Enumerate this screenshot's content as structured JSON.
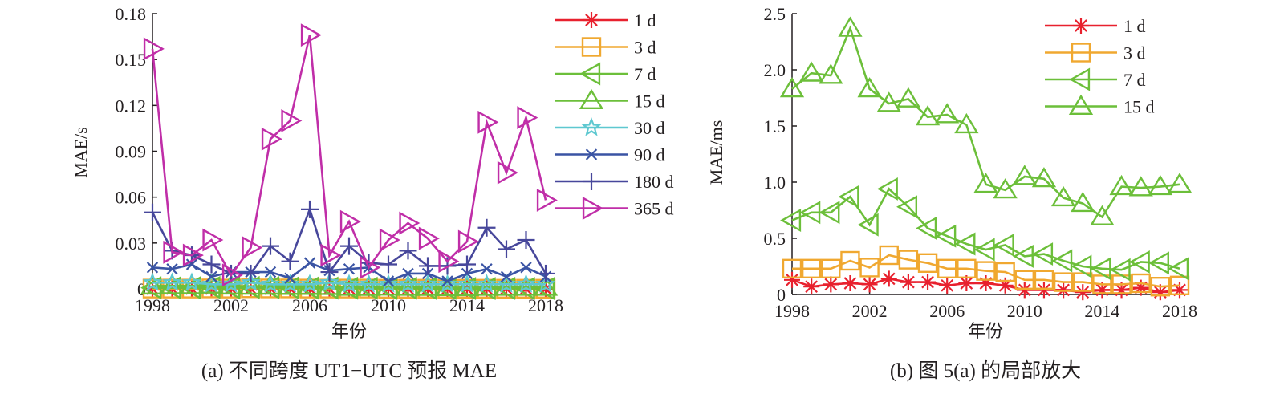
{
  "chart_data": [
    {
      "type": "line",
      "caption": "(a) 不同跨度 UT1−UTC 预报 MAE",
      "xlabel": "年份",
      "ylabel": "MAE/s",
      "xlim": [
        1998,
        2018
      ],
      "ylim": [
        0,
        0.18
      ],
      "xticks": [
        "1998",
        "2002",
        "2006",
        "2010",
        "2014",
        "2018"
      ],
      "yticks": [
        "0",
        "0.03",
        "0.06",
        "0.09",
        "0.12",
        "0.15",
        "0.18"
      ],
      "grid": false,
      "legend_position": "right",
      "x": [
        1998,
        1999,
        2000,
        2001,
        2002,
        2003,
        2004,
        2005,
        2006,
        2007,
        2008,
        2009,
        2010,
        2011,
        2012,
        2013,
        2014,
        2015,
        2016,
        2017,
        2018
      ],
      "series": [
        {
          "name": "1 d",
          "color": "#e8212e",
          "marker": "asterisk",
          "values": [
            0.0001,
            0.0001,
            0.0001,
            0.0001,
            0.0001,
            0.0001,
            0.0001,
            0.0001,
            0.0001,
            0.0001,
            0.0001,
            0.0001,
            0.0,
            0.0,
            0.0,
            0.0,
            0.0,
            0.0,
            0.0001,
            0.0,
            0.0
          ]
        },
        {
          "name": "3 d",
          "color": "#f0a830",
          "marker": "square",
          "values": [
            0.0002,
            0.0002,
            0.0002,
            0.0003,
            0.0002,
            0.0004,
            0.0003,
            0.0003,
            0.0002,
            0.0002,
            0.0002,
            0.0002,
            0.0001,
            0.0001,
            0.0001,
            0.0001,
            0.0001,
            0.0001,
            0.0001,
            0.0001,
            0.0001
          ]
        },
        {
          "name": "7 d",
          "color": "#6cbf3a",
          "marker": "triangle-left",
          "values": [
            0.0007,
            0.0007,
            0.0007,
            0.0009,
            0.0006,
            0.0009,
            0.0008,
            0.0006,
            0.0005,
            0.0005,
            0.0004,
            0.0004,
            0.0003,
            0.0004,
            0.0003,
            0.0003,
            0.0002,
            0.0002,
            0.0003,
            0.0003,
            0.0002
          ]
        },
        {
          "name": "15 d",
          "color": "#6cbf3a",
          "marker": "triangle-up",
          "values": [
            0.0018,
            0.002,
            0.002,
            0.0024,
            0.0018,
            0.0017,
            0.0017,
            0.0016,
            0.0016,
            0.0015,
            0.001,
            0.0009,
            0.0011,
            0.001,
            0.0009,
            0.0008,
            0.0007,
            0.001,
            0.001,
            0.001,
            0.001
          ]
        },
        {
          "name": "30 d",
          "color": "#5ec8d0",
          "marker": "star",
          "values": [
            0.004,
            0.004,
            0.004,
            0.003,
            0.003,
            0.004,
            0.003,
            0.003,
            0.003,
            0.004,
            0.003,
            0.003,
            0.003,
            0.003,
            0.003,
            0.003,
            0.003,
            0.003,
            0.003,
            0.003,
            0.003
          ]
        },
        {
          "name": "90 d",
          "color": "#3a54a4",
          "marker": "x",
          "values": [
            0.014,
            0.013,
            0.016,
            0.008,
            0.011,
            0.011,
            0.011,
            0.007,
            0.017,
            0.012,
            0.013,
            0.014,
            0.005,
            0.01,
            0.01,
            0.005,
            0.01,
            0.013,
            0.008,
            0.014,
            0.008
          ]
        },
        {
          "name": "180 d",
          "color": "#47479b",
          "marker": "plus",
          "values": [
            0.05,
            0.025,
            0.022,
            0.016,
            0.01,
            0.01,
            0.028,
            0.018,
            0.052,
            0.011,
            0.028,
            0.017,
            0.016,
            0.025,
            0.015,
            0.015,
            0.016,
            0.04,
            0.026,
            0.032,
            0.01
          ]
        },
        {
          "name": "365 d",
          "color": "#c02ea8",
          "marker": "triangle-right",
          "values": [
            0.157,
            0.024,
            0.022,
            0.032,
            0.009,
            0.027,
            0.098,
            0.11,
            0.166,
            0.022,
            0.044,
            0.014,
            0.032,
            0.043,
            0.033,
            0.018,
            0.031,
            0.109,
            0.076,
            0.112,
            0.058
          ]
        }
      ]
    },
    {
      "type": "line",
      "caption": "(b) 图 5(a) 的局部放大",
      "xlabel": "年份",
      "ylabel": "MAE/ms",
      "xlim": [
        1998,
        2018
      ],
      "ylim": [
        0,
        2.5
      ],
      "xticks": [
        "1998",
        "2002",
        "2006",
        "2010",
        "2014",
        "2018"
      ],
      "yticks": [
        "0",
        "0.5",
        "1.0",
        "1.5",
        "2.0",
        "2.5"
      ],
      "grid": false,
      "legend_position": "top-right",
      "x": [
        1998,
        1999,
        2000,
        2001,
        2002,
        2003,
        2004,
        2005,
        2006,
        2007,
        2008,
        2009,
        2010,
        2011,
        2012,
        2013,
        2014,
        2015,
        2016,
        2017,
        2018
      ],
      "series": [
        {
          "name": "1 d",
          "color": "#e8212e",
          "marker": "asterisk",
          "values": [
            0.13,
            0.07,
            0.09,
            0.1,
            0.09,
            0.14,
            0.11,
            0.11,
            0.08,
            0.1,
            0.1,
            0.08,
            0.04,
            0.04,
            0.04,
            0.02,
            0.04,
            0.04,
            0.06,
            0.02,
            0.04
          ]
        },
        {
          "name": "3 d",
          "color": "#f0a830",
          "marker": "square",
          "values": [
            0.23,
            0.23,
            0.23,
            0.3,
            0.24,
            0.35,
            0.31,
            0.28,
            0.23,
            0.23,
            0.21,
            0.2,
            0.13,
            0.13,
            0.11,
            0.11,
            0.09,
            0.09,
            0.1,
            0.07,
            0.08
          ]
        },
        {
          "name": "7 d",
          "color": "#6cbf3a",
          "marker": "triangle-left",
          "values": [
            0.66,
            0.73,
            0.73,
            0.87,
            0.62,
            0.94,
            0.78,
            0.59,
            0.52,
            0.45,
            0.4,
            0.44,
            0.34,
            0.36,
            0.3,
            0.25,
            0.23,
            0.22,
            0.29,
            0.28,
            0.23
          ]
        },
        {
          "name": "15 d",
          "color": "#6cbf3a",
          "marker": "triangle-up",
          "values": [
            1.83,
            1.97,
            1.95,
            2.37,
            1.83,
            1.7,
            1.74,
            1.58,
            1.6,
            1.51,
            0.98,
            0.93,
            1.05,
            1.03,
            0.86,
            0.81,
            0.69,
            0.96,
            0.95,
            0.96,
            0.98
          ]
        }
      ]
    }
  ]
}
